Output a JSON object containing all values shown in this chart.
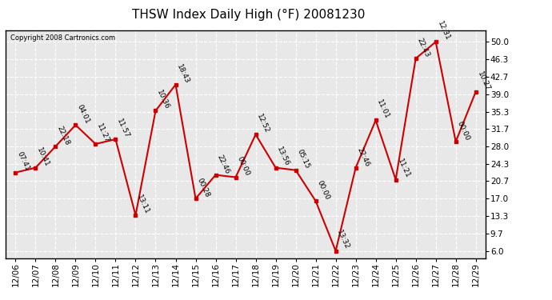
{
  "title": "THSW Index Daily High (°F) 20081230",
  "copyright": "Copyright 2008 Cartronics.com",
  "dates": [
    "12/06",
    "12/07",
    "12/08",
    "12/09",
    "12/10",
    "12/11",
    "12/12",
    "12/13",
    "12/14",
    "12/15",
    "12/16",
    "12/17",
    "12/18",
    "12/19",
    "12/20",
    "12/21",
    "12/22",
    "12/23",
    "12/24",
    "12/25",
    "12/26",
    "12/27",
    "12/28",
    "12/29"
  ],
  "values": [
    22.5,
    23.5,
    28.0,
    32.5,
    28.5,
    29.5,
    13.5,
    35.5,
    41.0,
    17.0,
    22.0,
    21.5,
    30.5,
    23.5,
    23.0,
    16.5,
    6.0,
    23.5,
    33.5,
    21.0,
    46.5,
    50.0,
    29.0,
    39.5
  ],
  "time_labels": [
    "07:41",
    "10:41",
    "22:18",
    "04:01",
    "11:27",
    "11:57",
    "13:11",
    "10:36",
    "18:43",
    "00:28",
    "22:46",
    "00:00",
    "12:52",
    "13:56",
    "05:15",
    "00:00",
    "13:32",
    "22:46",
    "11:01",
    "11:21",
    "22:43",
    "12:31",
    "00:00",
    "10:27"
  ],
  "line_color": "#cc0000",
  "marker_color": "#cc0000",
  "bg_color": "#ffffff",
  "plot_bg_color": "#e8e8e8",
  "grid_color": "#ffffff",
  "yticks": [
    6.0,
    9.7,
    13.3,
    17.0,
    20.7,
    24.3,
    28.0,
    31.7,
    35.3,
    39.0,
    42.7,
    46.3,
    50.0
  ],
  "ylim": [
    4.5,
    52.5
  ],
  "title_fontsize": 11,
  "label_fontsize": 6.5,
  "tick_fontsize": 7.5,
  "copyright_fontsize": 6
}
